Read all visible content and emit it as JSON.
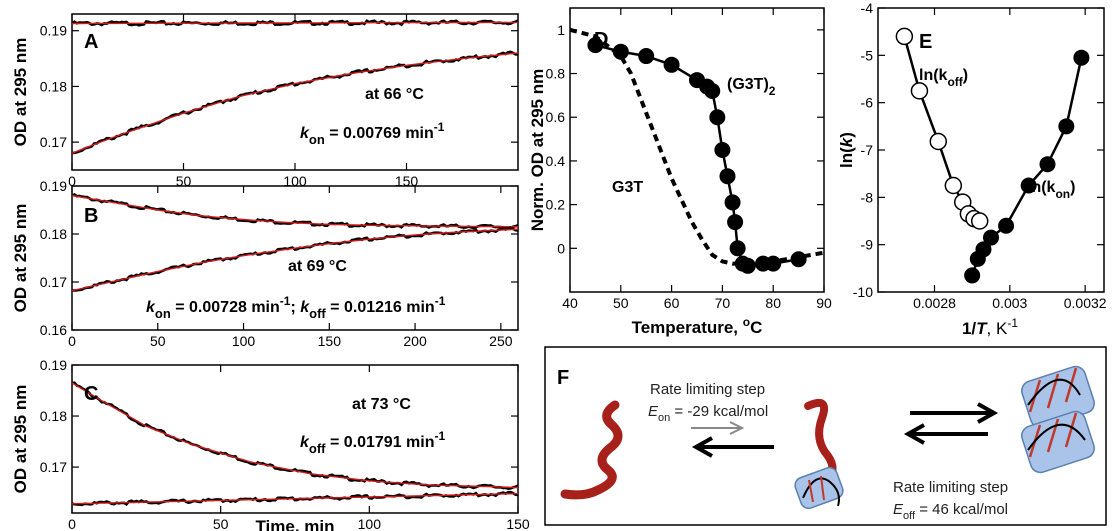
{
  "chart_data": [
    {
      "panel": "A",
      "type": "scatter",
      "ylabel": "OD at 295 nm",
      "xlim": [
        0,
        200
      ],
      "ylim": [
        0.165,
        0.193
      ],
      "x_ticks": [
        0,
        50,
        100,
        150
      ],
      "y_ticks": [
        0.17,
        0.18,
        0.19
      ],
      "y_tick_labels": [
        "0.17",
        "0.18",
        "0.19"
      ],
      "annotations": {
        "temp": "at 66 °C",
        "k_sym": "k",
        "k_sub": "on",
        "k_val": " = 0.00769 min",
        "k_exp": "-1"
      },
      "series": [
        {
          "x": [
            0,
            200
          ],
          "y": [
            0.1913,
            0.1915
          ]
        },
        {
          "x": [
            0,
            10,
            25,
            50,
            75,
            100,
            125,
            150,
            175,
            200
          ],
          "y": [
            0.168,
            0.1696,
            0.1718,
            0.1752,
            0.1782,
            0.1805,
            0.1823,
            0.1838,
            0.185,
            0.186
          ]
        }
      ]
    },
    {
      "panel": "B",
      "type": "scatter",
      "ylabel": "OD at 295 nm",
      "xlim": [
        0,
        260
      ],
      "ylim": [
        0.16,
        0.19
      ],
      "x_ticks": [
        0,
        50,
        100,
        150,
        200,
        250
      ],
      "y_ticks": [
        0.16,
        0.17,
        0.18,
        0.19
      ],
      "y_tick_labels": [
        "0.16",
        "0.17",
        "0.18",
        "0.19"
      ],
      "annotations": {
        "temp": "at 69 °C",
        "kon_sym": "k",
        "kon_sub": "on",
        "kon_val": " = 0.00728 min",
        "kon_exp": "-1",
        "sep": "; ",
        "koff_sym": "k",
        "koff_sub": "off",
        "koff_val": " = 0.01216 min",
        "koff_exp": "-1"
      },
      "series": [
        {
          "x": [
            0,
            25,
            50,
            75,
            100,
            125,
            150,
            175,
            200,
            225,
            260
          ],
          "y": [
            0.188,
            0.1865,
            0.185,
            0.1838,
            0.183,
            0.1824,
            0.182,
            0.1818,
            0.1817,
            0.1816,
            0.1815
          ]
        },
        {
          "x": [
            0,
            25,
            50,
            75,
            100,
            125,
            150,
            175,
            200,
            225,
            260
          ],
          "y": [
            0.1682,
            0.1702,
            0.1722,
            0.174,
            0.1755,
            0.1768,
            0.178,
            0.179,
            0.1798,
            0.1804,
            0.181
          ]
        }
      ]
    },
    {
      "panel": "C",
      "type": "scatter",
      "ylabel": "OD at 295 nm",
      "xlabel": "Time, min",
      "xlim": [
        0,
        150
      ],
      "ylim": [
        0.161,
        0.19
      ],
      "x_ticks": [
        0,
        50,
        100,
        150
      ],
      "y_ticks": [
        0.17,
        0.18,
        0.19
      ],
      "y_tick_labels": [
        "0.17",
        "0.18",
        "0.19"
      ],
      "annotations": {
        "temp": "at 73 °C",
        "k_sym": "k",
        "k_sub": "off",
        "k_val": " = 0.01791 min",
        "k_exp": "-1"
      },
      "series": [
        {
          "x": [
            0,
            10,
            25,
            40,
            60,
            80,
            100,
            120,
            150
          ],
          "y": [
            0.1865,
            0.183,
            0.178,
            0.1745,
            0.171,
            0.1687,
            0.1673,
            0.1665,
            0.166
          ]
        },
        {
          "x": [
            0,
            150
          ],
          "y": [
            0.1628,
            0.1648
          ]
        }
      ]
    },
    {
      "panel": "D",
      "type": "line",
      "ylabel": "Norm. OD at 295 nm",
      "xlabel": "Temperature, °C",
      "xlim": [
        40,
        90
      ],
      "ylim": [
        -0.2,
        1.1
      ],
      "x_ticks": [
        40,
        50,
        60,
        70,
        80,
        90
      ],
      "y_ticks": [
        0,
        0.2,
        0.4,
        0.6,
        0.8,
        1
      ],
      "y_tick_labels": [
        "0",
        "0.2",
        "0.4",
        "0.6",
        "0.8",
        "1"
      ],
      "series": [
        {
          "name": "(G3T)",
          "name_sub": "2",
          "x": [
            45,
            50,
            55,
            60,
            65,
            67,
            68,
            69,
            70,
            71,
            72,
            72.5,
            73,
            74,
            75,
            78,
            80,
            85
          ],
          "y": [
            0.93,
            0.9,
            0.88,
            0.84,
            0.77,
            0.74,
            0.72,
            0.6,
            0.45,
            0.33,
            0.21,
            0.12,
            0.0,
            -0.07,
            -0.08,
            -0.07,
            -0.07,
            -0.05
          ]
        },
        {
          "name": "G3T",
          "x": [
            40,
            45,
            50,
            52,
            55,
            58,
            60,
            62,
            64,
            66,
            68,
            70,
            72,
            75,
            80,
            85,
            90
          ],
          "y": [
            1.0,
            0.97,
            0.88,
            0.8,
            0.62,
            0.44,
            0.32,
            0.22,
            0.12,
            0.04,
            -0.03,
            -0.06,
            -0.07,
            -0.07,
            -0.06,
            -0.04,
            -0.02
          ]
        }
      ]
    },
    {
      "panel": "E",
      "type": "scatter",
      "ylabel": "ln(k)",
      "xlabel": "1/T, K",
      "xlim": [
        0.00265,
        0.00325
      ],
      "ylim": [
        -10,
        -4
      ],
      "x_ticks": [
        0.0028,
        0.003,
        0.0032
      ],
      "x_tick_labels": [
        "0.0028",
        "0.003",
        "0.0032"
      ],
      "y_ticks": [
        -10,
        -9,
        -8,
        -7,
        -6,
        -5,
        -4
      ],
      "y_tick_labels": [
        "-10",
        "-9",
        "-8",
        "-7",
        "-6",
        "-5",
        "-4"
      ],
      "series": [
        {
          "name": "ln(k_off)",
          "x": [
            0.00272,
            0.00276,
            0.00281,
            0.00285,
            0.002875,
            0.00289,
            0.002905,
            0.00292
          ],
          "y": [
            -4.6,
            -5.75,
            -6.82,
            -7.75,
            -8.1,
            -8.35,
            -8.45,
            -8.5
          ]
        },
        {
          "name": "ln(k_on)",
          "x": [
            0.0029,
            0.002915,
            0.00293,
            0.00295,
            0.00299,
            0.00305,
            0.0031,
            0.00315,
            0.00319
          ],
          "y": [
            -9.65,
            -9.3,
            -9.1,
            -8.85,
            -8.6,
            -7.75,
            -7.3,
            -6.5,
            -5.05
          ]
        }
      ]
    }
  ],
  "labels": {
    "A": "A",
    "B": "B",
    "C": "C",
    "D": "D",
    "E": "E",
    "F": "F",
    "e_koff": "ln(k",
    "e_koff_sub": "off",
    "e_kon": "ln(k",
    "e_kon_sub": "on",
    "paren": ")",
    "e_xlabel_a": "1/",
    "e_xlabel_b": "T",
    "e_xlabel_c": ", K",
    "e_xlabel_exp": "-1",
    "e_ylabel_a": "ln(",
    "e_ylabel_b": "k",
    "e_ylabel_c": ")",
    "d_xlabel": "Temperature, ",
    "d_xlabel_sup": "o",
    "d_xlabel_c": "C",
    "deg": "o",
    "degC": "C"
  },
  "scheme": {
    "step1_title": "Rate limiting step",
    "step1_E": "E",
    "step1_sub": "on",
    "step1_val": " = -29 kcal/mol",
    "step2_title": "Rate limiting step",
    "step2_E": "E",
    "step2_sub": "off",
    "step2_val": " = 46 kcal/mol",
    "colors": {
      "strand": "#a8201a",
      "cylinder": "#7ea7d6",
      "arrow": "#000000"
    }
  },
  "colors": {
    "data": "#000000",
    "fit": "#d21a1a"
  }
}
